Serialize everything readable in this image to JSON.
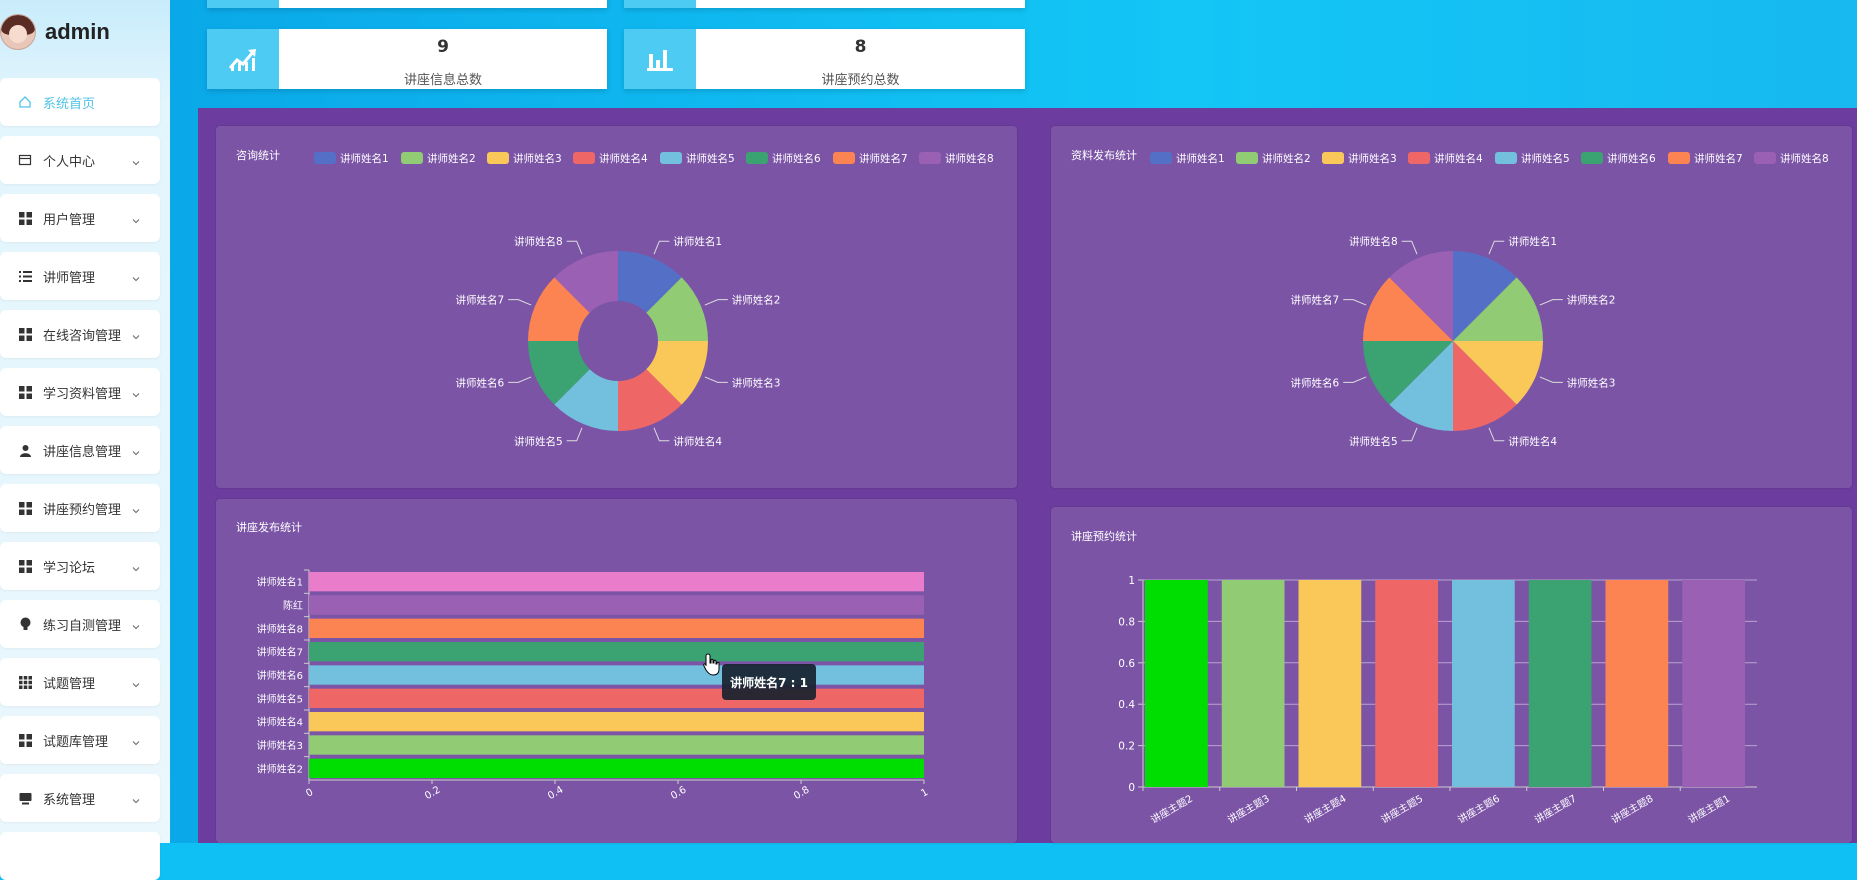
{
  "sidebar": {
    "brand": "admin",
    "items": [
      {
        "label": "系统首页",
        "icon": "home-icon",
        "active": true
      },
      {
        "label": "个人中心",
        "icon": "card-icon"
      },
      {
        "label": "用户管理",
        "icon": "grid-icon"
      },
      {
        "label": "讲师管理",
        "icon": "list-icon"
      },
      {
        "label": "在线咨询管理",
        "icon": "grid-icon"
      },
      {
        "label": "学习资料管理",
        "icon": "grid-icon"
      },
      {
        "label": "讲座信息管理",
        "icon": "user-icon"
      },
      {
        "label": "讲座预约管理",
        "icon": "grid-icon"
      },
      {
        "label": "学习论坛",
        "icon": "grid-icon"
      },
      {
        "label": "练习自测管理",
        "icon": "bulb-icon"
      },
      {
        "label": "试题管理",
        "icon": "apps-icon"
      },
      {
        "label": "试题库管理",
        "icon": "grid-icon"
      },
      {
        "label": "系统管理",
        "icon": "monitor-icon"
      }
    ]
  },
  "stats": [
    {
      "value": "9",
      "label": "讲座信息总数",
      "icon": "trend-chart-icon"
    },
    {
      "value": "8",
      "label": "讲座预约总数",
      "icon": "bar-chart-icon"
    }
  ],
  "colors": [
    "#5470c6",
    "#91cc75",
    "#fac858",
    "#ee6666",
    "#73c0de",
    "#3ba272",
    "#fc8452",
    "#9a60b4"
  ],
  "chart_data": [
    {
      "type": "pie",
      "variant": "donut",
      "title": "咨询统计",
      "legend": [
        "讲师姓名1",
        "讲师姓名2",
        "讲师姓名3",
        "讲师姓名4",
        "讲师姓名5",
        "讲师姓名6",
        "讲师姓名7",
        "讲师姓名8"
      ],
      "values": [
        1,
        1,
        1,
        1,
        1,
        1,
        1,
        1
      ],
      "legend_position": "top"
    },
    {
      "type": "pie",
      "title": "资料发布统计",
      "legend": [
        "讲师姓名1",
        "讲师姓名2",
        "讲师姓名3",
        "讲师姓名4",
        "讲师姓名5",
        "讲师姓名6",
        "讲师姓名7",
        "讲师姓名8"
      ],
      "values": [
        1,
        1,
        1,
        1,
        1,
        1,
        1,
        1
      ],
      "legend_position": "top"
    },
    {
      "type": "bar",
      "orientation": "horizontal",
      "title": "讲座发布统计",
      "categories": [
        "讲师姓名2",
        "讲师姓名3",
        "讲师姓名4",
        "讲师姓名5",
        "讲师姓名6",
        "讲师姓名7",
        "讲师姓名8",
        "陈红",
        "讲师姓名1"
      ],
      "values": [
        1,
        1,
        1,
        1,
        1,
        1,
        1,
        1,
        1
      ],
      "bar_colors": [
        "#00dd00",
        "#91cc75",
        "#fac858",
        "#ee6666",
        "#73c0de",
        "#3ba272",
        "#fc8452",
        "#9a60b4",
        "#ea7ccc"
      ],
      "xlim": [
        0,
        1
      ],
      "xticks": [
        "0",
        "0.2",
        "0.4",
        "0.6",
        "0.8",
        "1"
      ],
      "tooltip": "讲师姓名7 : 1"
    },
    {
      "type": "bar",
      "title": "讲座预约统计",
      "categories": [
        "讲座主题2",
        "讲座主题3",
        "讲座主题4",
        "讲座主题5",
        "讲座主题6",
        "讲座主题7",
        "讲座主题8",
        "讲座主题1"
      ],
      "values": [
        1,
        1,
        1,
        1,
        1,
        1,
        1,
        1
      ],
      "bar_colors": [
        "#00dd00",
        "#91cc75",
        "#fac858",
        "#ee6666",
        "#73c0de",
        "#3ba272",
        "#fc8452",
        "#9a60b4"
      ],
      "ylim": [
        0,
        1
      ],
      "yticks": [
        "0",
        "0.2",
        "0.4",
        "0.6",
        "0.8",
        "1"
      ]
    }
  ]
}
